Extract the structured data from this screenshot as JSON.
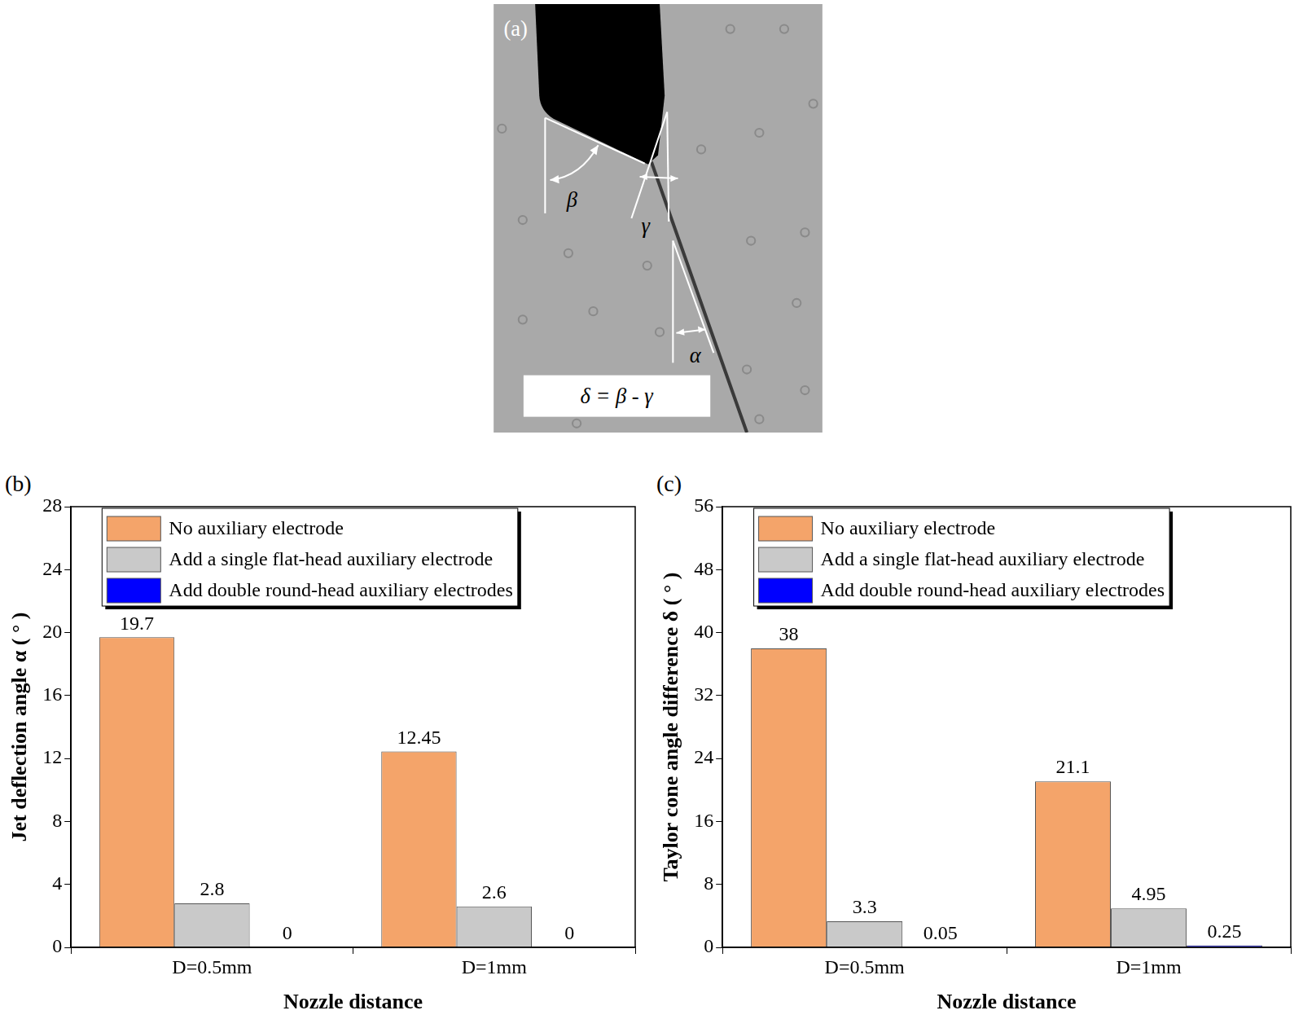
{
  "figure_panel": {
    "label": "(a)",
    "angle_labels": [
      "β",
      "γ",
      "α"
    ],
    "formula": "δ = β - γ"
  },
  "chart_data": [
    {
      "panel_label": "(b)",
      "type": "bar",
      "categories": [
        "D=0.5mm",
        "D=1mm"
      ],
      "series": [
        {
          "name": "No auxiliary electrode",
          "color": "#f4a46a",
          "values": [
            19.7,
            12.45
          ]
        },
        {
          "name": "Add a single flat-head auxiliary electrode",
          "color": "#c9c9c9",
          "values": [
            2.8,
            2.6
          ]
        },
        {
          "name": "Add double round-head auxiliary electrodes",
          "color": "#0000ff",
          "values": [
            0,
            0
          ]
        }
      ],
      "x_label": "Nozzle distance",
      "y_label": "Jet deflection angle α ( ° )",
      "ylim": [
        0,
        28
      ],
      "yticks": [
        0,
        4,
        8,
        12,
        16,
        20,
        24,
        28
      ],
      "grid": false,
      "legend": "top",
      "data_labels": true
    },
    {
      "panel_label": "(c)",
      "type": "bar",
      "categories": [
        "D=0.5mm",
        "D=1mm"
      ],
      "series": [
        {
          "name": "No auxiliary electrode",
          "color": "#f4a46a",
          "values": [
            38,
            21.1
          ]
        },
        {
          "name": "Add a single flat-head auxiliary electrode",
          "color": "#c9c9c9",
          "values": [
            3.3,
            4.95
          ]
        },
        {
          "name": "Add double round-head auxiliary electrodes",
          "color": "#0000ff",
          "values": [
            0.05,
            0.25
          ]
        }
      ],
      "x_label": "Nozzle distance",
      "y_label": "Taylor cone angle difference δ ( ° )",
      "ylim": [
        0,
        56
      ],
      "yticks": [
        0,
        8,
        16,
        24,
        32,
        40,
        48,
        56
      ],
      "grid": false,
      "legend": "top",
      "data_labels": true
    }
  ]
}
